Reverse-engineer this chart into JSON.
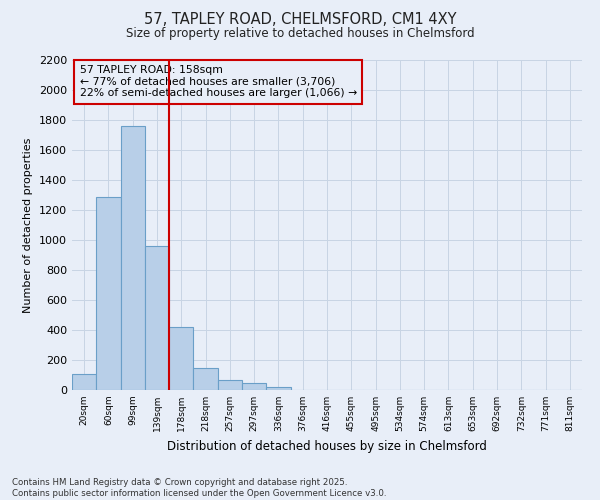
{
  "title_line1": "57, TAPLEY ROAD, CHELMSFORD, CM1 4XY",
  "title_line2": "Size of property relative to detached houses in Chelmsford",
  "xlabel": "Distribution of detached houses by size in Chelmsford",
  "ylabel": "Number of detached properties",
  "footer_line1": "Contains HM Land Registry data © Crown copyright and database right 2025.",
  "footer_line2": "Contains public sector information licensed under the Open Government Licence v3.0.",
  "categories": [
    "20sqm",
    "60sqm",
    "99sqm",
    "139sqm",
    "178sqm",
    "218sqm",
    "257sqm",
    "297sqm",
    "336sqm",
    "376sqm",
    "416sqm",
    "455sqm",
    "495sqm",
    "534sqm",
    "574sqm",
    "613sqm",
    "653sqm",
    "692sqm",
    "732sqm",
    "771sqm",
    "811sqm"
  ],
  "values": [
    110,
    1290,
    1760,
    960,
    420,
    150,
    70,
    45,
    20,
    0,
    0,
    0,
    0,
    0,
    0,
    0,
    0,
    0,
    0,
    0,
    0
  ],
  "bar_color": "#b8cfe8",
  "bar_edge_color": "#6a9fc8",
  "grid_color": "#c8d4e4",
  "background_color": "#e8eef8",
  "vline_color": "#cc0000",
  "annotation_text": "57 TAPLEY ROAD: 158sqm\n← 77% of detached houses are smaller (3,706)\n22% of semi-detached houses are larger (1,066) →",
  "annotation_box_color": "#cc0000",
  "ylim": [
    0,
    2200
  ],
  "yticks": [
    0,
    200,
    400,
    600,
    800,
    1000,
    1200,
    1400,
    1600,
    1800,
    2000,
    2200
  ]
}
